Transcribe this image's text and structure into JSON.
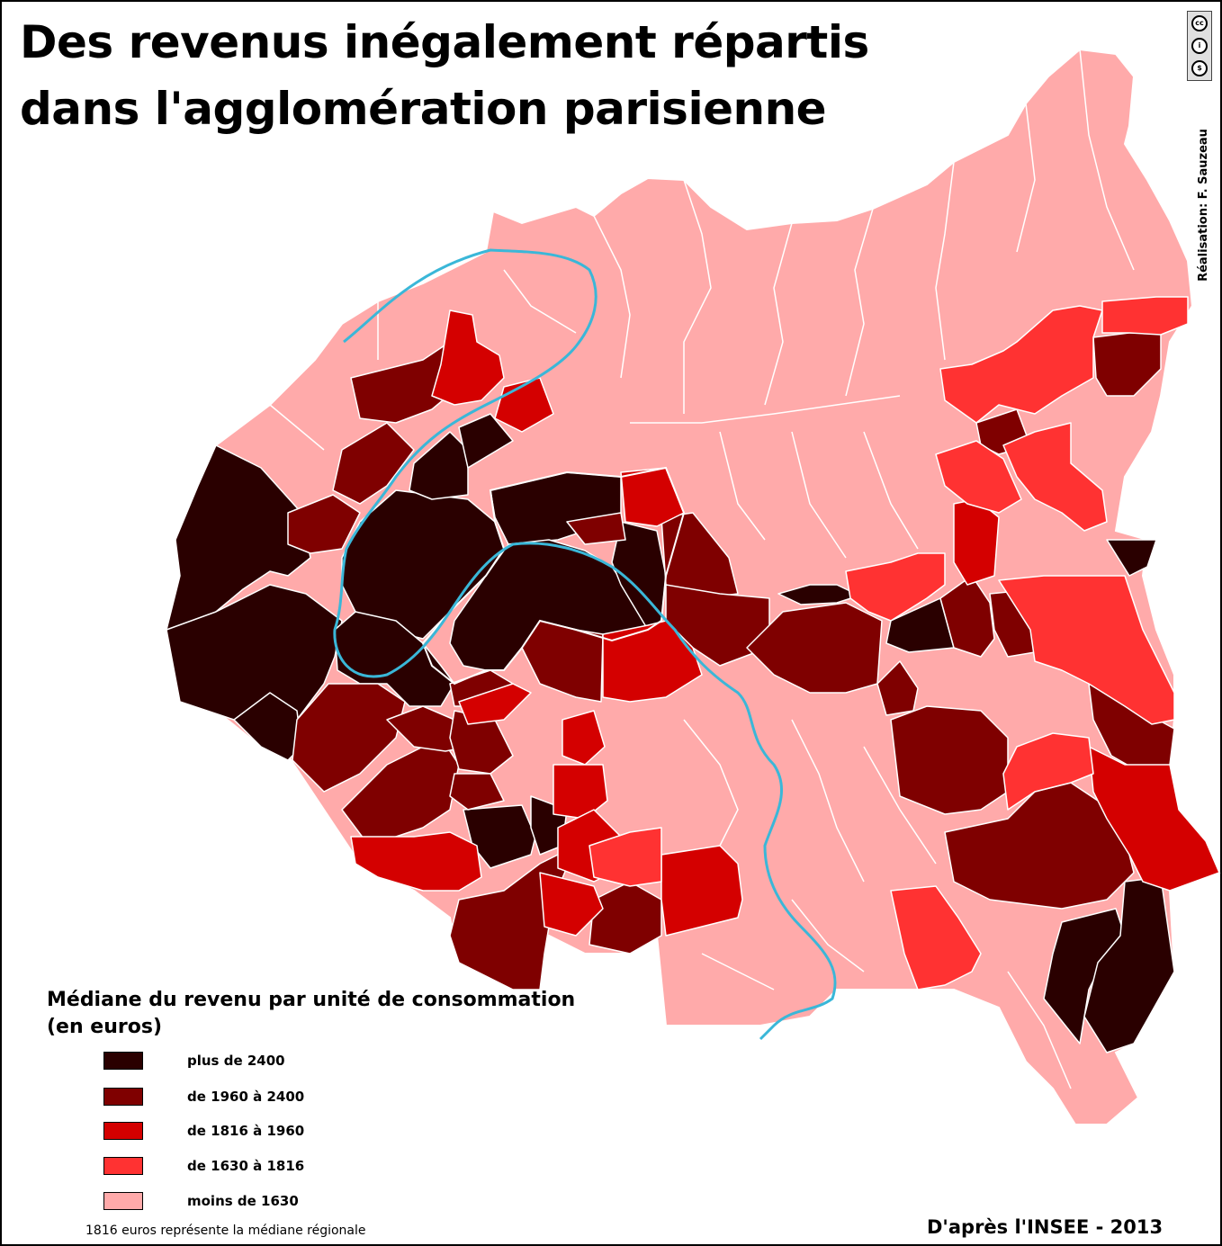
{
  "title": {
    "line1": "Des revenus inégalement répartis",
    "line2": "dans l'agglomération parisienne"
  },
  "credit": "Réalisation: F. Sauzeau",
  "license": {
    "icons": [
      "cc",
      "by",
      "nc"
    ]
  },
  "legend": {
    "title_line1": "Médiane du revenu par unité de consommation",
    "title_line2": "(en euros)",
    "items": [
      {
        "label": "plus de 2400",
        "color": "#2a0000"
      },
      {
        "label": "de 1960 à 2400",
        "color": "#7f0000"
      },
      {
        "label": "de 1816 à 1960",
        "color": "#d40000"
      },
      {
        "label": "de 1630 à 1816",
        "color": "#ff3232"
      },
      {
        "label": "moins de 1630",
        "color": "#ffaaaa"
      }
    ]
  },
  "footnote": "1816 euros représente la médiane régionale",
  "source": "D'après l'INSEE - 2013",
  "colors": {
    "border": "#ffffff",
    "river": "#3ab7d8"
  }
}
